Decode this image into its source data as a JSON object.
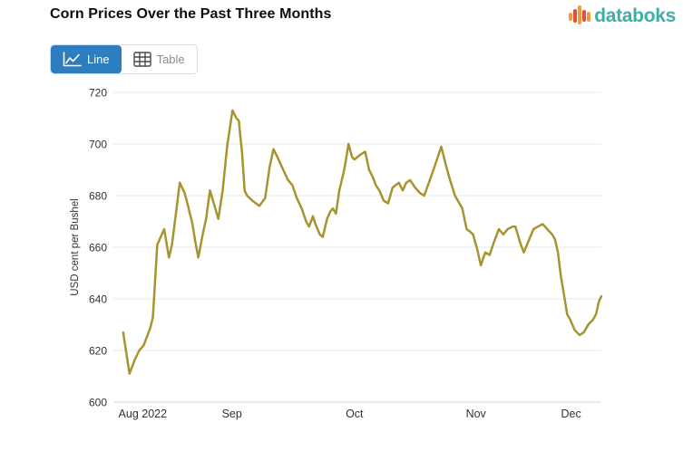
{
  "header": {
    "title": "Corn Prices Over the Past Three Months",
    "logo_text": "databoks"
  },
  "toolbar": {
    "line_label": "Line",
    "table_label": "Table"
  },
  "colors": {
    "line": "#a79430",
    "active_button_blue": "#2d7ec0",
    "logo_teal": "#3cb0a8",
    "logo_orange": "#f0993f",
    "logo_red": "#e0503f",
    "grid": "#e8e8e8",
    "axis_text": "#333333"
  },
  "chart_data": {
    "type": "line",
    "title": "Corn Prices Over the Past Three Months",
    "xlabel": "",
    "ylabel": "USD cent per Bushel",
    "ylim": [
      600,
      720
    ],
    "y_ticks": [
      600,
      620,
      640,
      660,
      680,
      700,
      720
    ],
    "grid": "horizontal",
    "legend": "none",
    "x_ticks": [
      {
        "label": "Aug 2022",
        "f": 0.06
      },
      {
        "label": "Sep",
        "f": 0.243
      },
      {
        "label": "Oct",
        "f": 0.494
      },
      {
        "label": "Nov",
        "f": 0.743
      },
      {
        "label": "Dec",
        "f": 0.938
      }
    ],
    "series_name": "Corn price (USD cent per Bushel)",
    "points": [
      [
        0.02,
        627
      ],
      [
        0.033,
        611
      ],
      [
        0.043,
        616
      ],
      [
        0.053,
        620
      ],
      [
        0.062,
        622
      ],
      [
        0.076,
        629
      ],
      [
        0.081,
        633
      ],
      [
        0.09,
        661
      ],
      [
        0.104,
        667
      ],
      [
        0.114,
        656
      ],
      [
        0.12,
        661
      ],
      [
        0.136,
        685
      ],
      [
        0.146,
        681
      ],
      [
        0.153,
        676
      ],
      [
        0.162,
        669
      ],
      [
        0.168,
        662
      ],
      [
        0.174,
        656
      ],
      [
        0.183,
        665
      ],
      [
        0.19,
        671
      ],
      [
        0.198,
        682
      ],
      [
        0.209,
        675
      ],
      [
        0.215,
        671
      ],
      [
        0.224,
        682
      ],
      [
        0.233,
        699
      ],
      [
        0.244,
        713
      ],
      [
        0.252,
        710
      ],
      [
        0.257,
        709
      ],
      [
        0.264,
        696
      ],
      [
        0.269,
        682
      ],
      [
        0.274,
        680
      ],
      [
        0.285,
        678
      ],
      [
        0.292,
        677
      ],
      [
        0.299,
        676
      ],
      [
        0.311,
        679
      ],
      [
        0.32,
        691
      ],
      [
        0.328,
        698
      ],
      [
        0.336,
        695
      ],
      [
        0.348,
        690
      ],
      [
        0.358,
        686
      ],
      [
        0.367,
        684
      ],
      [
        0.376,
        679
      ],
      [
        0.386,
        675
      ],
      [
        0.395,
        670
      ],
      [
        0.401,
        668
      ],
      [
        0.409,
        672
      ],
      [
        0.414,
        669
      ],
      [
        0.423,
        665
      ],
      [
        0.429,
        664
      ],
      [
        0.438,
        671
      ],
      [
        0.445,
        674
      ],
      [
        0.45,
        675
      ],
      [
        0.456,
        673
      ],
      [
        0.463,
        682
      ],
      [
        0.473,
        690
      ],
      [
        0.482,
        700
      ],
      [
        0.489,
        695
      ],
      [
        0.494,
        694
      ],
      [
        0.507,
        696
      ],
      [
        0.516,
        697
      ],
      [
        0.524,
        690
      ],
      [
        0.532,
        687
      ],
      [
        0.538,
        684
      ],
      [
        0.545,
        682
      ],
      [
        0.554,
        678
      ],
      [
        0.563,
        677
      ],
      [
        0.572,
        683
      ],
      [
        0.578,
        684
      ],
      [
        0.585,
        685
      ],
      [
        0.593,
        682
      ],
      [
        0.6,
        685
      ],
      [
        0.608,
        686
      ],
      [
        0.619,
        683
      ],
      [
        0.628,
        681
      ],
      [
        0.637,
        680
      ],
      [
        0.656,
        690
      ],
      [
        0.672,
        699
      ],
      [
        0.681,
        692
      ],
      [
        0.69,
        686
      ],
      [
        0.7,
        680
      ],
      [
        0.706,
        678
      ],
      [
        0.715,
        675
      ],
      [
        0.724,
        667
      ],
      [
        0.731,
        666
      ],
      [
        0.737,
        665
      ],
      [
        0.746,
        659
      ],
      [
        0.753,
        653
      ],
      [
        0.762,
        658
      ],
      [
        0.771,
        657
      ],
      [
        0.78,
        662
      ],
      [
        0.79,
        667
      ],
      [
        0.799,
        665
      ],
      [
        0.808,
        667
      ],
      [
        0.818,
        668
      ],
      [
        0.824,
        668
      ],
      [
        0.833,
        662
      ],
      [
        0.841,
        658
      ],
      [
        0.852,
        663
      ],
      [
        0.861,
        667
      ],
      [
        0.87,
        668
      ],
      [
        0.88,
        669
      ],
      [
        0.889,
        667
      ],
      [
        0.899,
        665
      ],
      [
        0.905,
        663
      ],
      [
        0.911,
        658
      ],
      [
        0.917,
        649
      ],
      [
        0.923,
        642
      ],
      [
        0.93,
        634
      ],
      [
        0.936,
        632
      ],
      [
        0.945,
        628
      ],
      [
        0.955,
        626
      ],
      [
        0.964,
        627
      ],
      [
        0.973,
        630
      ],
      [
        0.983,
        632
      ],
      [
        0.989,
        634
      ],
      [
        0.995,
        639
      ],
      [
        1.0,
        641
      ]
    ]
  }
}
